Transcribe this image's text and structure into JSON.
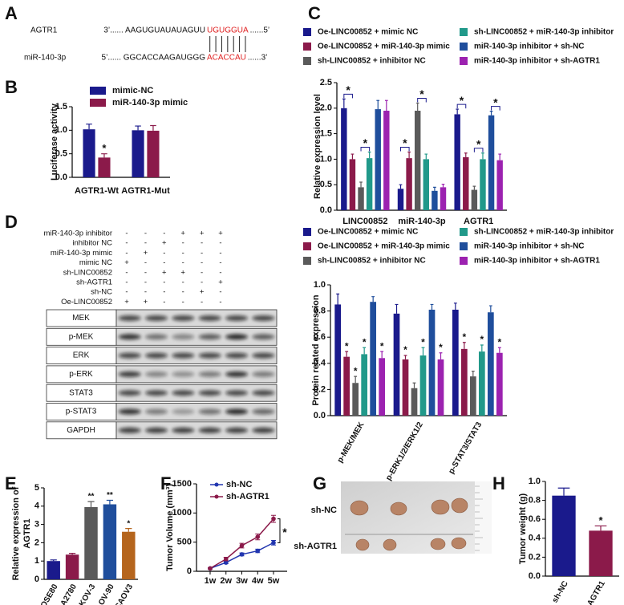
{
  "panel_labels": [
    "A",
    "B",
    "C",
    "D",
    "E",
    "F",
    "G",
    "H"
  ],
  "sequence_alignment": {
    "rows": [
      {
        "label": "AGTR1",
        "prefix": "3’...... AAGUGUAUAUAGUU",
        "seed": "UGUGGUA",
        "suffix": "......5’"
      },
      {
        "label": "miR-140-3p",
        "prefix": "5’...... GGCACCAAGAUGGG",
        "seed": "ACACCAU",
        "suffix": "......3’"
      }
    ]
  },
  "western_blot": {
    "conditions": [
      {
        "label": "miR-140-3p inhibitor",
        "lanes": [
          "-",
          "-",
          "-",
          "+",
          "+",
          "+"
        ]
      },
      {
        "label": "inhibitor NC",
        "lanes": [
          "-",
          "-",
          "+",
          "-",
          "-",
          "-"
        ]
      },
      {
        "label": "miR-140-3p mimic",
        "lanes": [
          "-",
          "+",
          "-",
          "-",
          "-",
          "-"
        ]
      },
      {
        "label": "mimic NC",
        "lanes": [
          "+",
          "-",
          "-",
          "-",
          "-",
          "-"
        ]
      },
      {
        "label": "sh-LINC00852",
        "lanes": [
          "-",
          "-",
          "+",
          "+",
          "-",
          "-"
        ]
      },
      {
        "label": "sh-AGTR1",
        "lanes": [
          "-",
          "-",
          "-",
          "-",
          "-",
          "+"
        ]
      },
      {
        "label": "sh-NC",
        "lanes": [
          "-",
          "-",
          "-",
          "-",
          "+",
          "-"
        ]
      },
      {
        "label": "Oe-LINC00852",
        "lanes": [
          "+",
          "+",
          "-",
          "-",
          "-",
          "-"
        ]
      }
    ],
    "bands": [
      "MEK",
      "p-MEK",
      "ERK",
      "p-ERK",
      "STAT3",
      "p-STAT3",
      "GAPDH"
    ]
  },
  "tumor_photo": {
    "rows": [
      "sh-NC",
      "sh-AGTR1"
    ]
  },
  "chart_data": [
    {
      "type": "bar",
      "ylabel": "Luciferase activity",
      "categories": [
        "AGTR1-Wt",
        "AGTR1-Mut"
      ],
      "series": [
        {
          "name": "mimic-NC",
          "color": "#1a1a8c",
          "values": [
            1.02,
            1.0
          ],
          "errors": [
            0.11,
            0.09
          ]
        },
        {
          "name": "miR-140-3p mimic",
          "color": "#8b1a4a",
          "values": [
            0.42,
            0.99
          ],
          "errors": [
            0.08,
            0.11
          ],
          "significance": [
            "*",
            null
          ]
        }
      ],
      "ylim": [
        0,
        1.5
      ],
      "yticks": [
        {
          "value": 0,
          "label": "0.0"
        },
        0.5,
        {
          "value": 1,
          "label": "1.0"
        },
        1.5
      ]
    },
    {
      "type": "bar",
      "ylabel": "Relative expression level",
      "categories": [
        "LINC00852",
        "miR-140-3p",
        "AGTR1"
      ],
      "series": [
        {
          "name": "Oe-LINC00852 + mimic NC",
          "color": "#1a1a8c",
          "values": [
            2.0,
            0.42,
            1.88
          ],
          "errors": [
            0.18,
            0.08,
            0.1
          ]
        },
        {
          "name": "Oe-LINC00852 + miR-140-3p mimic",
          "color": "#8b1a4a",
          "values": [
            1.0,
            1.02,
            1.04
          ],
          "errors": [
            0.1,
            0.12,
            0.08
          ],
          "significance": [
            "*",
            "*",
            "*"
          ]
        },
        {
          "name": "sh-LINC00852 + inhibitor NC",
          "color": "#5a5a5a",
          "values": [
            0.45,
            1.95,
            0.4
          ],
          "errors": [
            0.1,
            0.15,
            0.07
          ]
        },
        {
          "name": "sh-LINC00852 + miR-140-3p inhibitor",
          "color": "#21998a",
          "values": [
            1.02,
            1.0,
            1.0
          ],
          "errors": [
            0.12,
            0.1,
            0.12
          ],
          "significance": [
            "*",
            "*",
            "*"
          ]
        },
        {
          "name": "miR-140-3p inhibitor + sh-NC",
          "color": "#1f4e9c",
          "values": [
            1.98,
            0.38,
            1.86
          ],
          "errors": [
            0.17,
            0.07,
            0.08
          ]
        },
        {
          "name": "miR-140-3p inhibitor + sh-AGTR1",
          "color": "#9c22b0",
          "values": [
            1.95,
            0.45,
            0.98
          ],
          "errors": [
            0.2,
            0.06,
            0.12
          ],
          "significance": [
            null,
            null,
            "*"
          ]
        }
      ],
      "ylim": [
        0,
        2.5
      ],
      "yticks": [
        {
          "value": 0,
          "label": "0.0"
        },
        0.5,
        {
          "value": 1,
          "label": "1.0"
        },
        1.5,
        {
          "value": 2,
          "label": "2.0"
        },
        2.5
      ],
      "significance_brackets": true
    },
    {
      "type": "bar",
      "ylabel": "Protein related expression",
      "categories": [
        "p-MEK/MEK",
        "p-ERK1/2/ERK1/2",
        "p-STAT3/STAT3"
      ],
      "series": [
        {
          "name": "Oe-LINC00852 + mimic NC",
          "color": "#1a1a8c",
          "values": [
            0.85,
            0.78,
            0.81
          ],
          "errors": [
            0.08,
            0.07,
            0.05
          ]
        },
        {
          "name": "Oe-LINC00852 + miR-140-3p mimic",
          "color": "#8b1a4a",
          "values": [
            0.45,
            0.43,
            0.51
          ],
          "errors": [
            0.04,
            0.03,
            0.05
          ],
          "significance": [
            "*",
            "*",
            "*"
          ]
        },
        {
          "name": "sh-LINC00852 + inhibitor NC",
          "color": "#5a5a5a",
          "values": [
            0.25,
            0.21,
            0.3
          ],
          "errors": [
            0.05,
            0.04,
            0.04
          ],
          "significance": [
            "*",
            null,
            null
          ]
        },
        {
          "name": "sh-LINC00852 + miR-140-3p inhibitor",
          "color": "#21998a",
          "values": [
            0.47,
            0.46,
            0.49
          ],
          "errors": [
            0.05,
            0.06,
            0.05
          ],
          "significance": [
            "*",
            "*",
            "*"
          ]
        },
        {
          "name": "miR-140-3p inhibitor + sh-NC",
          "color": "#1f4e9c",
          "values": [
            0.87,
            0.81,
            0.79
          ],
          "errors": [
            0.04,
            0.04,
            0.05
          ]
        },
        {
          "name": "miR-140-3p inhibitor + sh-AGTR1",
          "color": "#9c22b0",
          "values": [
            0.44,
            0.43,
            0.48
          ],
          "errors": [
            0.05,
            0.05,
            0.04
          ],
          "significance": [
            "*",
            "*",
            "*"
          ]
        }
      ],
      "ylim": [
        0,
        1
      ],
      "yticks": [
        {
          "value": 0,
          "label": "0.0"
        },
        0.2,
        0.4,
        0.6,
        0.8,
        {
          "value": 1,
          "label": "1.0"
        }
      ]
    },
    {
      "type": "bar",
      "ylabel": [
        "Relative expression of",
        "AGTR1"
      ],
      "categories": [
        "IOSE80",
        "A2780",
        "SKOV-3",
        "OV-90",
        "CAOV3"
      ],
      "values": [
        1.0,
        1.35,
        3.95,
        4.1,
        2.6
      ],
      "errors": [
        0.06,
        0.07,
        0.3,
        0.22,
        0.18
      ],
      "colors": [
        "#1a1a8c",
        "#8b1a4a",
        "#5a5a5a",
        "#1f4e9c",
        "#b5651d"
      ],
      "significance": [
        null,
        null,
        "**",
        "**",
        "*"
      ],
      "ylim": [
        0,
        5
      ],
      "yticks": [
        0,
        1,
        2,
        3,
        4,
        5
      ]
    },
    {
      "type": "line",
      "ylabel": "Tumor Volume (mm³)",
      "categories": [
        "1w",
        "2w",
        "3w",
        "4w",
        "5w"
      ],
      "series": [
        {
          "name": "sh-NC",
          "color": "#2236b0",
          "values": [
            50,
            150,
            290,
            350,
            490
          ],
          "errors": [
            10,
            20,
            25,
            30,
            40
          ]
        },
        {
          "name": "sh-AGTR1",
          "color": "#8b1a4a",
          "values": [
            50,
            210,
            440,
            590,
            900
          ],
          "errors": [
            10,
            30,
            40,
            50,
            60
          ],
          "significance": [
            null,
            null,
            null,
            null,
            "*"
          ]
        }
      ],
      "ylim": [
        0,
        1500
      ],
      "yticks": [
        0,
        500,
        1000,
        1500
      ]
    },
    {
      "type": "bar",
      "ylabel": "Tumor weight (g)",
      "categories": [
        "sh-NC",
        "sh-AGTR1"
      ],
      "values": [
        0.85,
        0.48
      ],
      "errors": [
        0.08,
        0.05
      ],
      "colors": [
        "#1a1a8c",
        "#8b1a4a"
      ],
      "significance": [
        null,
        "*"
      ],
      "ylim": [
        0,
        1
      ],
      "yticks": [
        {
          "value": 0,
          "label": "0.0"
        },
        0.2,
        0.4,
        0.6,
        0.8,
        {
          "value": 1,
          "label": "1.0"
        }
      ]
    }
  ]
}
